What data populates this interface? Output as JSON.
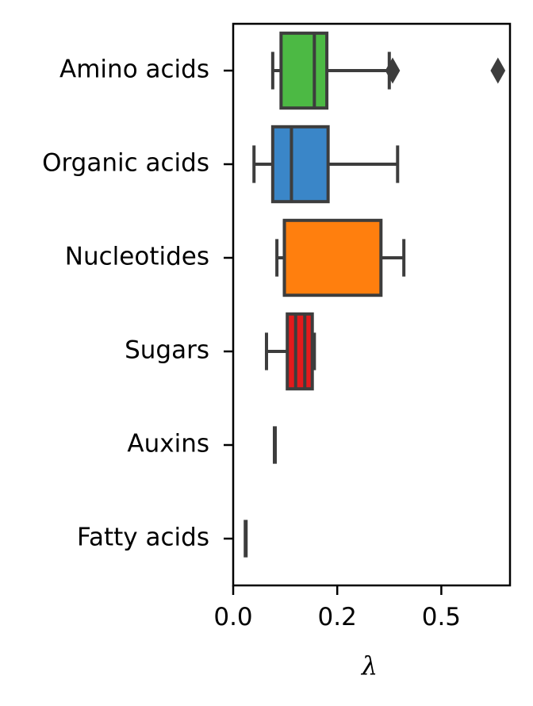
{
  "chart_data": {
    "type": "boxplot",
    "orientation": "horizontal",
    "xlabel": "λ",
    "xlim": [
      0,
      0.665
    ],
    "x_ticks": [
      0.0,
      0.25,
      0.5
    ],
    "x_tick_labels": [
      "0.0",
      "0.2",
      "0.5"
    ],
    "categories": [
      "Amino acids",
      "Organic acids",
      "Nucleotides",
      "Sugars",
      "Auxins",
      "Fatty acids"
    ],
    "series": [
      {
        "category": "Amino acids",
        "color": "#4cb944",
        "whisker_low": 0.095,
        "q1": 0.115,
        "median": 0.195,
        "q3": 0.225,
        "whisker_high": 0.375,
        "outliers": [
          0.383,
          0.636
        ]
      },
      {
        "category": "Organic acids",
        "color": "#3a86c8",
        "whisker_low": 0.05,
        "q1": 0.095,
        "median": 0.14,
        "q3": 0.228,
        "whisker_high": 0.395,
        "outliers": []
      },
      {
        "category": "Nucleotides",
        "color": "#ff7f0e",
        "whisker_low": 0.105,
        "q1": 0.123,
        "median": 0.123,
        "q3": 0.355,
        "whisker_high": 0.41,
        "outliers": []
      },
      {
        "category": "Sugars",
        "color": "#e41a1c",
        "whisker_low": 0.08,
        "q1": 0.13,
        "median": 0.15,
        "q3": 0.19,
        "whisker_high": 0.195,
        "outliers": [],
        "extra_lines": [
          0.172
        ]
      },
      {
        "category": "Auxins",
        "color": "#444444",
        "whisker_low": 0.1,
        "q1": 0.1,
        "median": 0.1,
        "q3": 0.1,
        "whisker_high": 0.1,
        "outliers": []
      },
      {
        "category": "Fatty acids",
        "color": "#444444",
        "whisker_low": 0.03,
        "q1": 0.03,
        "median": 0.03,
        "q3": 0.03,
        "whisker_high": 0.03,
        "outliers": []
      }
    ],
    "grid": false,
    "legend": "none"
  }
}
